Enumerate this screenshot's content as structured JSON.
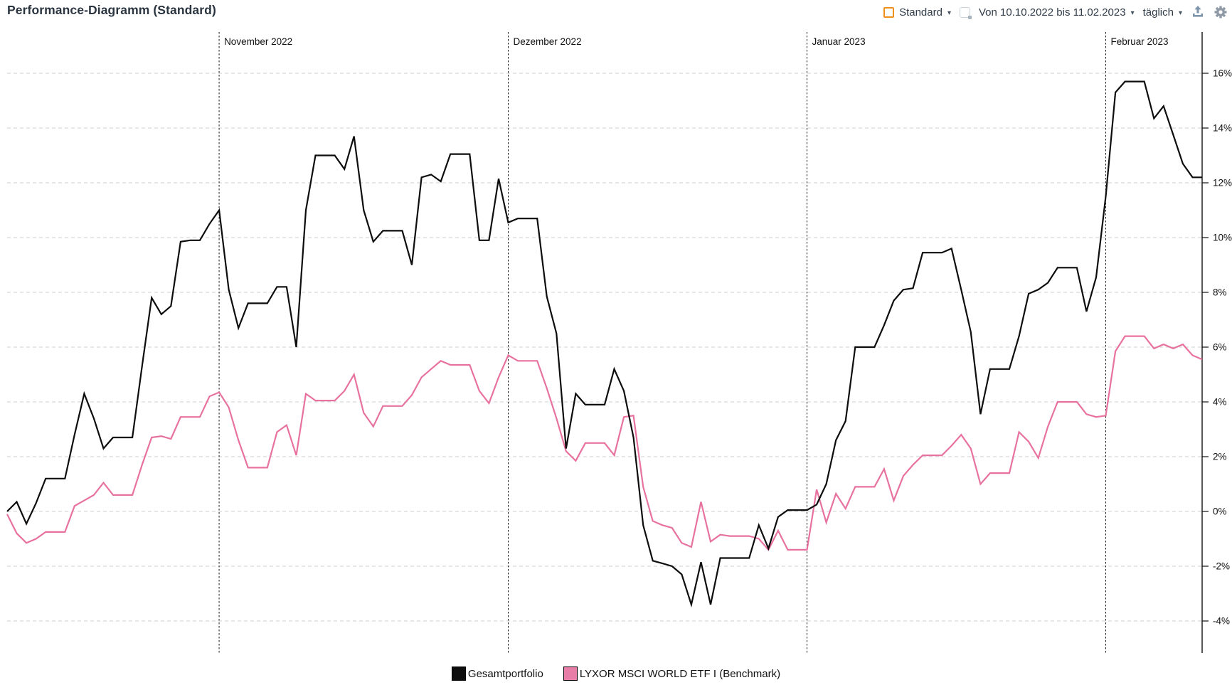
{
  "header": {
    "title": "Performance-Diagramm (Standard)",
    "controls": {
      "layout_label": "Standard",
      "dropdown_caret": "▾",
      "date_range_label": "Von 10.10.2022 bis 11.02.2023",
      "interval_label": "täglich",
      "accent_orange": "#ef8f1c",
      "icon_grey": "#8f9aa6",
      "upload_icon_color": "#7f95aa"
    }
  },
  "chart_data": {
    "type": "line",
    "title": "Performance-Diagramm (Standard)",
    "x_axis": {
      "start_date": "10.10.2022",
      "end_date": "11.02.2023",
      "unit": "calendar-day",
      "points": 125
    },
    "ylabel": "",
    "xlabel": "",
    "ylim": [
      -5.1,
      17.5
    ],
    "grid": "horizontal-dashed",
    "legend_position": "bottom-center",
    "y_ticks": [
      16,
      14,
      12,
      10,
      8,
      6,
      4,
      2,
      0,
      -2,
      -4
    ],
    "y_tick_labels": [
      "16%",
      "14%",
      "12%",
      "10%",
      "8%",
      "6%",
      "4%",
      "2%",
      "0%",
      "-2%",
      "-4%"
    ],
    "month_markers": [
      {
        "day": 22,
        "label": "November 2022"
      },
      {
        "day": 52,
        "label": "Dezember 2022"
      },
      {
        "day": 83,
        "label": "Januar 2023"
      },
      {
        "day": 114,
        "label": "Februar 2023"
      }
    ],
    "series": [
      {
        "id": "gesamtportfolio",
        "name": "Gesamtportfolio",
        "color": "#0d0d0d",
        "values": [
          0.0,
          0.35,
          -0.45,
          0.3,
          1.2,
          1.2,
          1.2,
          2.8,
          4.3,
          3.4,
          2.3,
          2.7,
          2.7,
          2.7,
          5.3,
          7.8,
          7.2,
          7.5,
          9.85,
          9.9,
          9.9,
          10.5,
          11.0,
          8.1,
          6.7,
          7.6,
          7.6,
          7.6,
          8.2,
          8.2,
          6.0,
          11.0,
          13.0,
          13.0,
          13.0,
          12.5,
          13.7,
          11.0,
          9.85,
          10.25,
          10.25,
          10.25,
          9.0,
          12.2,
          12.3,
          12.05,
          13.05,
          13.05,
          13.05,
          9.9,
          9.9,
          12.15,
          10.55,
          10.7,
          10.7,
          10.7,
          7.85,
          6.5,
          2.3,
          4.3,
          3.9,
          3.9,
          3.9,
          5.2,
          4.4,
          2.7,
          -0.5,
          -1.8,
          -1.9,
          -2.0,
          -2.3,
          -3.4,
          -1.85,
          -3.4,
          -1.7,
          -1.7,
          -1.7,
          -1.7,
          -0.5,
          -1.35,
          -0.2,
          0.05,
          0.05,
          0.05,
          0.25,
          1.0,
          2.6,
          3.3,
          6.0,
          6.0,
          6.0,
          6.8,
          7.7,
          8.1,
          8.15,
          9.45,
          9.45,
          9.45,
          9.6,
          8.1,
          6.55,
          3.55,
          5.2,
          5.2,
          5.2,
          6.4,
          7.95,
          8.1,
          8.35,
          8.9,
          8.9,
          8.9,
          7.3,
          8.55,
          11.5,
          15.3,
          15.7,
          15.7,
          15.7,
          14.35,
          14.8,
          13.75,
          12.7,
          12.2,
          12.2
        ]
      },
      {
        "id": "benchmark",
        "name": "LYXOR MSCI WORLD ETF I (Benchmark)",
        "color": "#e8729f",
        "legend_swatch_color": "#e87da8",
        "values": [
          -0.1,
          -0.8,
          -1.15,
          -1.0,
          -0.75,
          -0.75,
          -0.75,
          0.2,
          0.4,
          0.6,
          1.05,
          0.6,
          0.6,
          0.6,
          1.7,
          2.7,
          2.75,
          2.65,
          3.45,
          3.45,
          3.45,
          4.2,
          4.35,
          3.8,
          2.6,
          1.6,
          1.6,
          1.6,
          2.9,
          3.15,
          2.05,
          4.3,
          4.05,
          4.05,
          4.05,
          4.4,
          5.0,
          3.6,
          3.1,
          3.85,
          3.85,
          3.85,
          4.25,
          4.9,
          5.2,
          5.5,
          5.35,
          5.35,
          5.35,
          4.4,
          3.95,
          4.9,
          5.7,
          5.5,
          5.5,
          5.5,
          4.5,
          3.4,
          2.2,
          1.85,
          2.5,
          2.5,
          2.5,
          2.05,
          3.45,
          3.5,
          0.9,
          -0.35,
          -0.5,
          -0.6,
          -1.15,
          -1.3,
          0.35,
          -1.1,
          -0.85,
          -0.9,
          -0.9,
          -0.9,
          -1.0,
          -1.4,
          -0.7,
          -1.4,
          -1.4,
          -1.4,
          0.8,
          -0.4,
          0.65,
          0.1,
          0.9,
          0.9,
          0.9,
          1.55,
          0.4,
          1.3,
          1.7,
          2.05,
          2.05,
          2.05,
          2.4,
          2.8,
          2.3,
          1.0,
          1.4,
          1.4,
          1.4,
          2.9,
          2.55,
          1.95,
          3.1,
          4.0,
          4.0,
          4.0,
          3.55,
          3.45,
          3.5,
          5.85,
          6.4,
          6.4,
          6.4,
          5.95,
          6.1,
          5.95,
          6.1,
          5.7,
          5.55
        ]
      }
    ]
  }
}
